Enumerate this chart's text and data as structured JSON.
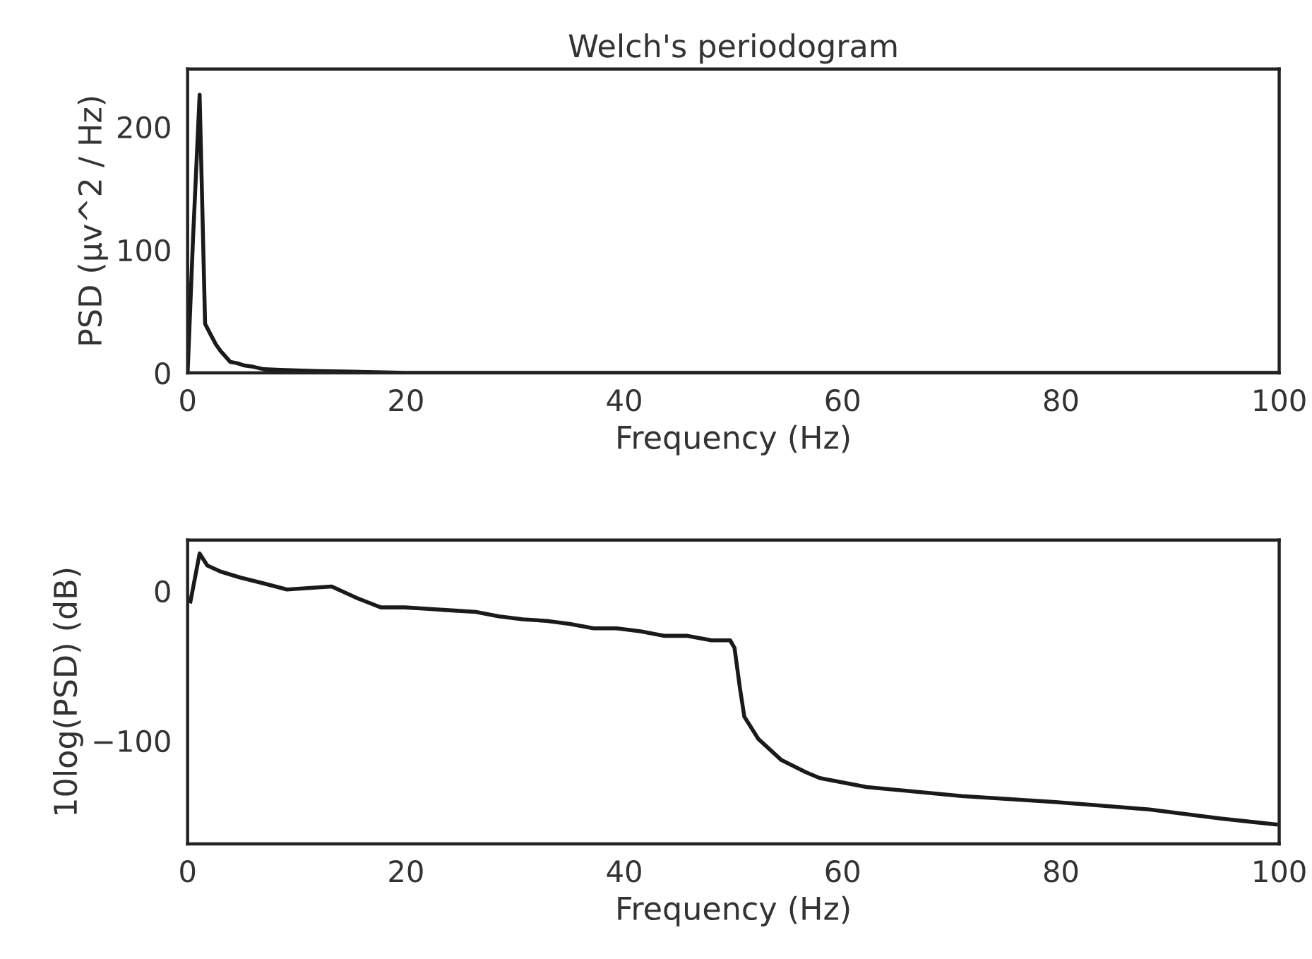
{
  "chart_data": [
    {
      "type": "line",
      "title": "Welch's periodogram",
      "xlabel": "Frequency (Hz)",
      "ylabel": "PSD (µv^2 / Hz)",
      "xlim": [
        0,
        100
      ],
      "xticks": [
        0,
        20,
        40,
        60,
        80,
        100
      ],
      "ylim": [
        0,
        247
      ],
      "yticks": [
        0,
        100,
        200
      ],
      "grid": false,
      "legend": false,
      "marker": "none",
      "line_style": "solid",
      "series": [
        {
          "color": "#1a1a1a",
          "x": [
            0,
            0.5,
            1.1,
            1.6,
            2.0,
            2.6,
            3.0,
            3.4,
            3.9,
            4.5,
            5.2,
            6.0,
            7.0,
            8.5,
            10,
            12,
            15,
            18,
            20,
            30,
            40,
            50,
            60,
            70,
            80,
            90,
            100
          ],
          "values": [
            0,
            110,
            226,
            40,
            33,
            23,
            18,
            14,
            9,
            8,
            6,
            5,
            3,
            2.5,
            2,
            1.5,
            1,
            0.5,
            0,
            0,
            0,
            0,
            0,
            0,
            0,
            0,
            0
          ]
        }
      ]
    },
    {
      "type": "line",
      "xlabel": "Frequency (Hz)",
      "ylabel": "10log(PSD) (dB)",
      "xlim": [
        0,
        100
      ],
      "xticks": [
        0,
        20,
        40,
        60,
        80,
        100
      ],
      "ylim": [
        -169,
        34
      ],
      "yticks": [
        {
          "value": -100,
          "label": "−100"
        },
        0
      ],
      "grid": false,
      "legend": false,
      "marker": "none",
      "line_style": "solid",
      "series": [
        {
          "color": "#1a1a1a",
          "x": [
            0.26,
            1.1,
            1.8,
            3.0,
            4.8,
            7.0,
            9.1,
            11.3,
            13.2,
            15.6,
            17.7,
            19.9,
            22.1,
            24.2,
            26.4,
            28.5,
            30.7,
            32.9,
            35.0,
            37.2,
            39.3,
            41.5,
            43.7,
            45.8,
            48.0,
            49.7,
            50.1,
            50.6,
            51.0,
            52.3,
            54.4,
            56.6,
            57.9,
            62.2,
            70.9,
            79.5,
            88.1,
            94.6,
            99.7
          ],
          "values": [
            -7,
            25,
            17,
            13,
            9,
            5,
            1,
            2,
            3,
            -5,
            -11,
            -11,
            -12,
            -13,
            -14,
            -17,
            -19,
            -20,
            -22,
            -25,
            -25,
            -27,
            -30,
            -30,
            -33,
            -33,
            -38,
            -65,
            -84,
            -99,
            -113,
            -121,
            -125,
            -131,
            -137,
            -141,
            -146,
            -152,
            -156
          ]
        }
      ]
    }
  ]
}
